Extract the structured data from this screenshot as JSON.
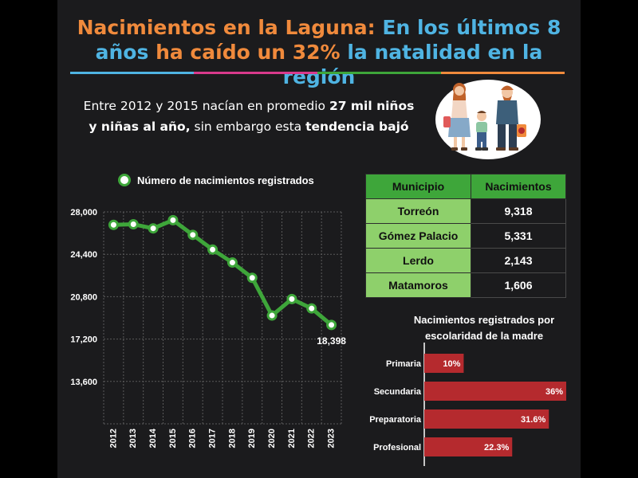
{
  "header": {
    "title_part1": "Nacimientos en la Laguna:",
    "title_part2": "En los últimos 8",
    "title_part3": "años",
    "title_part4": "ha caído un 32%",
    "title_part5": "la natalidad en la región"
  },
  "rule_colors": [
    "#4fb4e3",
    "#d93a8c",
    "#3ea63a",
    "#f08a3c"
  ],
  "subtitle": {
    "s1": "Entre 2012 y  2015 nacían en promedio ",
    "s2": "27 mil niños",
    "s3": "y niñas al año,",
    "s4": " sin embargo esta ",
    "s5": "tendencia bajó"
  },
  "colors": {
    "green": "#3ea63a",
    "light_green": "#8ed06b",
    "red": "#b52a2e",
    "orange": "#f08a3c",
    "blue": "#4fb4e3",
    "background": "#1b1b1d"
  },
  "chart_data": [
    {
      "type": "line",
      "legend": "Número de nacimientos registrados",
      "x": [
        "2012",
        "2013",
        "2014",
        "2015",
        "2016",
        "2017",
        "2018",
        "2019",
        "2020",
        "2021",
        "2022",
        "2023"
      ],
      "series": [
        {
          "name": "Número de nacimientos registrados",
          "values": [
            26900,
            26950,
            26600,
            27300,
            26050,
            24800,
            23700,
            22400,
            19200,
            20600,
            19800,
            18398
          ]
        }
      ],
      "y_ticks": [
        "28,000",
        "24,400",
        "20,800",
        "17,200",
        "13,600"
      ],
      "y_tick_values": [
        28000,
        24400,
        20800,
        17200,
        13600
      ],
      "ylim": [
        10000,
        28000
      ],
      "data_label": "18,398",
      "grid": true
    },
    {
      "type": "table",
      "columns": [
        "Municipio",
        "Nacimientos"
      ],
      "rows": [
        [
          "Torreón",
          "9,318"
        ],
        [
          "Gómez Palacio",
          "5,331"
        ],
        [
          "Lerdo",
          "2,143"
        ],
        [
          "Matamoros",
          "1,606"
        ]
      ]
    },
    {
      "type": "bar",
      "title_line1": "Nacimientos registrados por",
      "title_line2": "escolaridad de la madre",
      "categories": [
        "Primaria",
        "Secundaria",
        "Preparatoria",
        "Profesional"
      ],
      "values": [
        10,
        36,
        31.6,
        22.3
      ],
      "labels": [
        "10%",
        "36%",
        "31.6%",
        "22.3%"
      ],
      "orientation": "horizontal",
      "xlim": [
        0,
        36
      ]
    }
  ]
}
